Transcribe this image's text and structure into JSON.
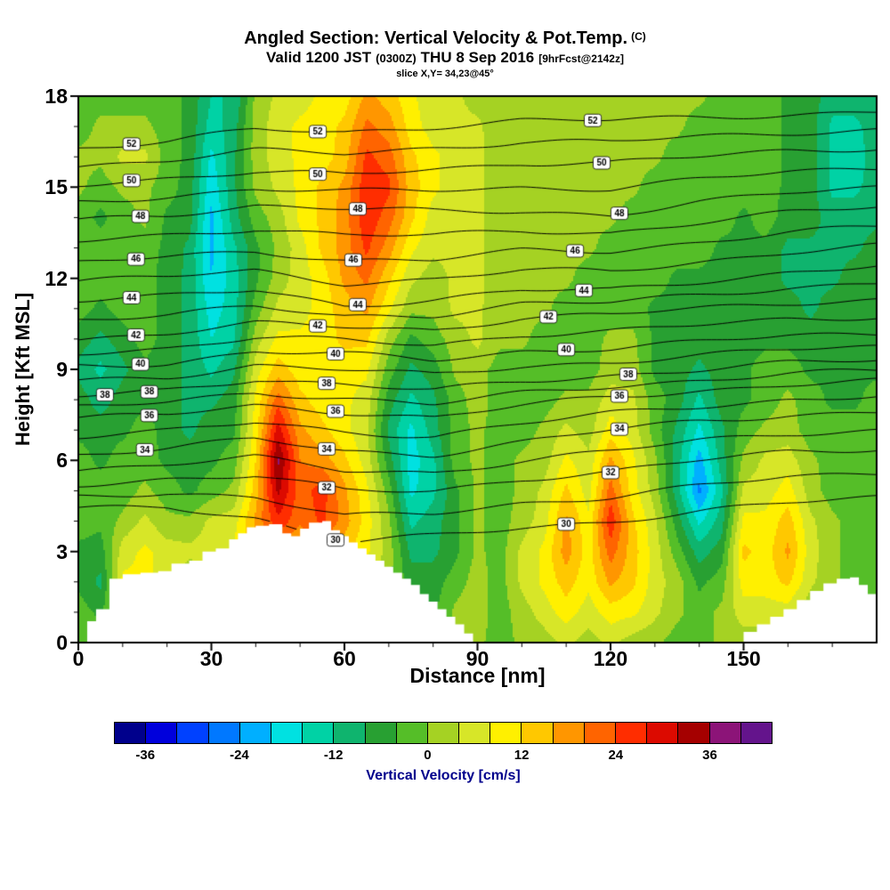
{
  "title": {
    "main": "Angled Section: Vertical Velocity & Pot.Temp.",
    "unit": "(C)"
  },
  "subtitle": {
    "valid": "Valid 1200 JST",
    "zulu": "(0300Z)",
    "date": "THU 8 Sep 2016",
    "fcst": "[9hrFcst@2142z]"
  },
  "slice_line": "slice X,Y= 34,23@45°",
  "chart_data": {
    "type": "heatmap",
    "overlay_type": "contour",
    "title": "Angled Section: Vertical Velocity & Pot.Temp. (C)",
    "xlabel": "Distance [nm]",
    "ylabel": "Height [Kft MSL]",
    "xlim": [
      0,
      180
    ],
    "ylim": [
      0,
      18
    ],
    "xticks": [
      0,
      30,
      60,
      90,
      120,
      150
    ],
    "yticks": [
      0,
      3,
      6,
      9,
      12,
      15,
      18
    ],
    "fill_field": {
      "name": "Vertical Velocity",
      "units": "cm/s",
      "x_step_nm": 5,
      "y_step_kft": 1,
      "columns": [
        [
          -2,
          -2,
          -5,
          -5,
          -2,
          -2,
          -2,
          -5,
          -6,
          -9,
          -6,
          -2,
          -2,
          -2,
          -2,
          1,
          1,
          -2,
          -2
        ],
        [
          -2,
          -5,
          -9,
          -6,
          -3,
          -2,
          -5,
          -6,
          -10,
          -13,
          -9,
          -5,
          -2,
          -2,
          -5,
          -2,
          1,
          1,
          -2
        ],
        [
          1,
          5,
          9,
          6,
          1,
          -2,
          -2,
          -5,
          -6,
          -9,
          -6,
          -2,
          -2,
          -2,
          -2,
          1,
          5,
          1,
          -2
        ],
        [
          1,
          6,
          9,
          9,
          5,
          1,
          -2,
          -2,
          -5,
          -5,
          -2,
          -2,
          -2,
          -2,
          1,
          1,
          5,
          1,
          -2
        ],
        [
          -2,
          1,
          6,
          6,
          1,
          -2,
          -5,
          -6,
          -6,
          -6,
          -6,
          -6,
          -6,
          -5,
          -5,
          -2,
          -2,
          -2,
          -2
        ],
        [
          -5,
          -5,
          1,
          5,
          1,
          -5,
          -6,
          -9,
          -9,
          -9,
          -9,
          -9,
          -9,
          -9,
          -6,
          -6,
          -5,
          -5,
          -5
        ],
        [
          -2,
          -2,
          1,
          6,
          5,
          -2,
          -5,
          -6,
          -9,
          -13,
          -16,
          -18,
          -20,
          -21,
          -21,
          -19,
          -17,
          -14,
          -12
        ],
        [
          1,
          1,
          5,
          9,
          6,
          1,
          -2,
          -5,
          -6,
          -9,
          -13,
          -14,
          -14,
          -13,
          -10,
          -9,
          -9,
          -10,
          -12
        ],
        [
          5,
          6,
          10,
          14,
          17,
          14,
          12,
          10,
          9,
          6,
          2,
          -2,
          -5,
          -5,
          -2,
          1,
          2,
          2,
          1
        ],
        [
          6,
          9,
          13,
          18,
          27,
          33,
          37,
          30,
          22,
          14,
          9,
          5,
          2,
          1,
          2,
          5,
          6,
          6,
          5
        ],
        [
          5,
          9,
          10,
          14,
          21,
          22,
          20,
          17,
          13,
          10,
          9,
          6,
          6,
          6,
          9,
          9,
          9,
          9,
          6
        ],
        [
          2,
          6,
          10,
          17,
          25,
          26,
          18,
          13,
          10,
          10,
          10,
          10,
          10,
          13,
          13,
          13,
          10,
          10,
          9
        ],
        [
          1,
          5,
          9,
          13,
          18,
          17,
          13,
          9,
          9,
          10,
          13,
          14,
          17,
          18,
          18,
          17,
          14,
          13,
          10
        ],
        [
          1,
          2,
          5,
          9,
          10,
          9,
          6,
          5,
          6,
          9,
          13,
          17,
          21,
          25,
          27,
          27,
          25,
          21,
          17
        ],
        [
          -2,
          -2,
          1,
          2,
          1,
          -2,
          -6,
          -9,
          -6,
          -2,
          2,
          9,
          13,
          18,
          22,
          25,
          22,
          18,
          14
        ],
        [
          -2,
          -5,
          -6,
          -9,
          -13,
          -17,
          -18,
          -17,
          -13,
          -9,
          -5,
          1,
          5,
          9,
          13,
          14,
          13,
          10,
          9
        ],
        [
          -2,
          -5,
          -6,
          -9,
          -10,
          -13,
          -13,
          -10,
          -9,
          -6,
          -2,
          1,
          2,
          5,
          6,
          9,
          9,
          6,
          5
        ],
        [
          1,
          1,
          -2,
          -5,
          -5,
          -5,
          -2,
          -2,
          -2,
          1,
          2,
          5,
          5,
          5,
          6,
          6,
          6,
          5,
          5
        ],
        [
          1,
          2,
          2,
          1,
          1,
          1,
          1,
          1,
          2,
          2,
          5,
          5,
          5,
          5,
          5,
          5,
          5,
          5,
          2
        ],
        [
          -2,
          -2,
          -2,
          -2,
          -2,
          -2,
          -2,
          -2,
          -2,
          -2,
          1,
          1,
          2,
          2,
          2,
          2,
          2,
          1,
          1
        ],
        [
          1,
          2,
          5,
          5,
          2,
          1,
          1,
          -2,
          -2,
          -2,
          1,
          1,
          1,
          2,
          2,
          2,
          1,
          1,
          1
        ],
        [
          2,
          6,
          9,
          9,
          6,
          5,
          2,
          1,
          -2,
          -2,
          -2,
          1,
          1,
          1,
          1,
          2,
          2,
          1,
          1
        ],
        [
          5,
          10,
          14,
          18,
          17,
          13,
          9,
          5,
          1,
          -2,
          -2,
          -2,
          1,
          1,
          1,
          1,
          1,
          1,
          1
        ],
        [
          2,
          6,
          9,
          10,
          9,
          6,
          5,
          2,
          1,
          -2,
          -2,
          -2,
          -2,
          1,
          1,
          1,
          1,
          1,
          1
        ],
        [
          5,
          10,
          17,
          22,
          27,
          22,
          17,
          10,
          6,
          2,
          1,
          -2,
          -2,
          -2,
          1,
          1,
          1,
          1,
          1
        ],
        [
          2,
          9,
          13,
          14,
          13,
          10,
          9,
          6,
          5,
          2,
          1,
          -2,
          -2,
          -2,
          -2,
          1,
          1,
          1,
          1
        ],
        [
          1,
          5,
          6,
          6,
          5,
          2,
          1,
          -2,
          -2,
          -5,
          -5,
          -5,
          -2,
          -2,
          -2,
          -2,
          1,
          1,
          1
        ],
        [
          -2,
          1,
          2,
          -2,
          -6,
          -10,
          -10,
          -9,
          -6,
          -6,
          -5,
          -5,
          -5,
          -2,
          -2,
          -2,
          -2,
          1,
          1
        ],
        [
          -2,
          -2,
          -5,
          -10,
          -17,
          -25,
          -22,
          -17,
          -13,
          -9,
          -6,
          -5,
          -5,
          -2,
          -2,
          -2,
          -2,
          -2,
          1
        ],
        [
          1,
          1,
          -2,
          -6,
          -10,
          -13,
          -10,
          -9,
          -6,
          -6,
          -6,
          -6,
          -5,
          -5,
          -2,
          -2,
          -2,
          -2,
          -2
        ],
        [
          2,
          6,
          10,
          13,
          9,
          5,
          1,
          -2,
          -5,
          -5,
          -6,
          -6,
          -6,
          -5,
          -5,
          -2,
          -2,
          -2,
          -2
        ],
        [
          2,
          6,
          10,
          10,
          9,
          6,
          5,
          1,
          -2,
          -2,
          -5,
          -6,
          -6,
          -5,
          -2,
          -2,
          -2,
          -2,
          -2
        ],
        [
          1,
          6,
          13,
          17,
          14,
          10,
          6,
          2,
          1,
          -2,
          -5,
          -6,
          -9,
          -9,
          -6,
          -5,
          -5,
          -5,
          -5
        ],
        [
          -2,
          1,
          5,
          6,
          5,
          2,
          1,
          -2,
          -2,
          -5,
          -6,
          -9,
          -9,
          -9,
          -6,
          -6,
          -6,
          -6,
          -6
        ],
        [
          -2,
          -2,
          1,
          1,
          1,
          -2,
          -2,
          -2,
          -5,
          -5,
          -6,
          -6,
          -9,
          -9,
          -10,
          -13,
          -13,
          -13,
          -10
        ],
        [
          -2,
          -2,
          -2,
          -2,
          -2,
          -2,
          -2,
          -2,
          -5,
          -5,
          -5,
          -6,
          -6,
          -9,
          -10,
          -13,
          -14,
          -13,
          -10
        ],
        [
          -2,
          -2,
          -2,
          -2,
          -2,
          -2,
          -2,
          -2,
          -2,
          -5,
          -5,
          -5,
          -6,
          -6,
          -9,
          -10,
          -10,
          -10,
          -9
        ]
      ]
    },
    "contour_field": {
      "name": "Potential Temperature",
      "units": "C",
      "interval": 1,
      "label_every": 2,
      "x_points": [
        0,
        20,
        40,
        60,
        80,
        100,
        120,
        140,
        160,
        180
      ],
      "curves": {
        "30": [
          4.4,
          4.5,
          4.1,
          3.3,
          3.5,
          3.8,
          4.0,
          4.3,
          4.6,
          4.8
        ],
        "32": [
          5.2,
          5.4,
          5.5,
          5.0,
          5.0,
          5.4,
          5.6,
          6.0,
          6.3,
          6.4
        ],
        "34": [
          6.2,
          6.4,
          6.7,
          6.3,
          6.2,
          6.6,
          7.0,
          7.3,
          7.5,
          7.6
        ],
        "36": [
          7.4,
          7.5,
          7.8,
          7.6,
          7.4,
          7.8,
          8.1,
          8.3,
          8.5,
          8.6
        ],
        "38": [
          8.1,
          8.3,
          8.7,
          8.5,
          8.3,
          8.6,
          8.8,
          9.0,
          9.2,
          9.3
        ],
        "40": [
          9.1,
          9.2,
          9.6,
          9.5,
          9.3,
          9.6,
          9.7,
          9.9,
          10.1,
          10.2
        ],
        "42": [
          10.0,
          10.2,
          10.5,
          10.4,
          10.3,
          10.7,
          10.8,
          11.0,
          11.2,
          11.3
        ],
        "44": [
          11.3,
          11.4,
          11.6,
          11.1,
          11.3,
          11.6,
          11.6,
          11.9,
          12.2,
          12.4
        ],
        "46": [
          12.5,
          12.7,
          12.9,
          12.6,
          12.6,
          12.9,
          12.9,
          13.2,
          13.5,
          13.7
        ],
        "48": [
          13.9,
          14.1,
          14.4,
          14.3,
          14.2,
          14.2,
          14.1,
          14.5,
          14.8,
          15.0
        ],
        "50": [
          15.1,
          15.3,
          15.5,
          15.4,
          15.6,
          15.8,
          15.8,
          16.0,
          16.2,
          16.3
        ],
        "52": [
          16.3,
          16.5,
          16.9,
          16.8,
          17.0,
          17.2,
          17.2,
          17.3,
          17.4,
          17.5
        ]
      },
      "labels": {
        "30": [
          58,
          110
        ],
        "32": [
          56,
          120
        ],
        "34": [
          15,
          56,
          122
        ],
        "36": [
          16,
          58,
          122
        ],
        "38": [
          6,
          16,
          56,
          124
        ],
        "40": [
          14,
          58,
          110
        ],
        "42": [
          13,
          54,
          106
        ],
        "44": [
          12,
          63,
          114
        ],
        "46": [
          13,
          62,
          112
        ],
        "48": [
          14,
          63,
          122
        ],
        "50": [
          12,
          54,
          118
        ],
        "52": [
          12,
          54,
          116
        ]
      }
    },
    "terrain": {
      "units": "kft",
      "points": [
        [
          0,
          0
        ],
        [
          2,
          0.7
        ],
        [
          4,
          1.1
        ],
        [
          7,
          2.1
        ],
        [
          10,
          2.25
        ],
        [
          14,
          2.3
        ],
        [
          18,
          2.35
        ],
        [
          21,
          2.6
        ],
        [
          25,
          2.7
        ],
        [
          28,
          3.0
        ],
        [
          31,
          3.1
        ],
        [
          34,
          3.4
        ],
        [
          36,
          3.6
        ],
        [
          38,
          3.8
        ],
        [
          40,
          3.85
        ],
        [
          43,
          3.9
        ],
        [
          46,
          3.6
        ],
        [
          48,
          3.5
        ],
        [
          50,
          3.75
        ],
        [
          52,
          3.95
        ],
        [
          55,
          4.0
        ],
        [
          57,
          3.7
        ],
        [
          59,
          3.5
        ],
        [
          61,
          3.3
        ],
        [
          63,
          3.1
        ],
        [
          65,
          2.9
        ],
        [
          67,
          2.7
        ],
        [
          69,
          2.5
        ],
        [
          71,
          2.3
        ],
        [
          73,
          2.1
        ],
        [
          75,
          1.9
        ],
        [
          77,
          1.6
        ],
        [
          79,
          1.35
        ],
        [
          81,
          1.1
        ],
        [
          83,
          0.85
        ],
        [
          85,
          0.6
        ],
        [
          87,
          0.3
        ],
        [
          89,
          0
        ],
        [
          147,
          0
        ],
        [
          150,
          0.35
        ],
        [
          153,
          0.6
        ],
        [
          156,
          0.85
        ],
        [
          159,
          1.1
        ],
        [
          162,
          1.4
        ],
        [
          165,
          1.7
        ],
        [
          168,
          1.95
        ],
        [
          171,
          2.1
        ],
        [
          174,
          2.15
        ],
        [
          176,
          1.9
        ],
        [
          178,
          1.6
        ],
        [
          180,
          1.4
        ]
      ]
    },
    "colorbar": {
      "label": "Vertical Velocity [cm/s]",
      "ticks": [
        -36,
        -24,
        -12,
        0,
        12,
        24,
        36
      ],
      "levels": [
        -40,
        -36,
        -32,
        -28,
        -24,
        -20,
        -16,
        -12,
        -8,
        -4,
        0,
        4,
        8,
        12,
        16,
        20,
        24,
        28,
        32,
        36,
        40,
        44
      ],
      "colors": [
        "#00008C",
        "#0000DC",
        "#0041FF",
        "#0078FF",
        "#00AFFF",
        "#00E1E1",
        "#00D2A5",
        "#0FB46E",
        "#28A032",
        "#55BE28",
        "#A5D223",
        "#D7E628",
        "#FFF000",
        "#FFC800",
        "#FF9600",
        "#FF6400",
        "#FF2D00",
        "#DC0A00",
        "#A50000",
        "#8C1478",
        "#64148C"
      ]
    }
  }
}
